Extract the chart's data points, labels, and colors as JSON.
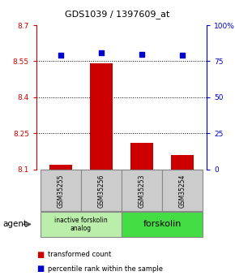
{
  "title": "GDS1039 / 1397609_at",
  "samples": [
    "GSM35255",
    "GSM35256",
    "GSM35253",
    "GSM35254"
  ],
  "bar_values": [
    8.12,
    8.54,
    8.21,
    8.16
  ],
  "percentile_values": [
    79,
    81,
    80,
    79
  ],
  "ylim_left": [
    8.1,
    8.7
  ],
  "ylim_right": [
    0,
    100
  ],
  "yticks_left": [
    8.1,
    8.25,
    8.4,
    8.55,
    8.7
  ],
  "ytick_labels_left": [
    "8.1",
    "8.25",
    "8.4",
    "8.55",
    "8.7"
  ],
  "yticks_right": [
    0,
    25,
    50,
    75,
    100
  ],
  "ytick_labels_right": [
    "0",
    "25",
    "50",
    "75",
    "100%"
  ],
  "hlines": [
    8.25,
    8.4,
    8.55
  ],
  "bar_color": "#cc0000",
  "dot_color": "#0000cc",
  "bar_width": 0.55,
  "group0_label": "inactive forskolin\nanalog",
  "group0_color": "#bbeeaa",
  "group1_label": "forskolin",
  "group1_color": "#44dd44",
  "group_border": "#888888",
  "agent_label": "agent",
  "legend_bar_label": "transformed count",
  "legend_dot_label": "percentile rank within the sample",
  "title_color": "#000000",
  "left_axis_color": "#cc0000",
  "right_axis_color": "#0000cc",
  "background_color": "#ffffff",
  "sample_box_color": "#cccccc",
  "sample_box_border": "#888888"
}
